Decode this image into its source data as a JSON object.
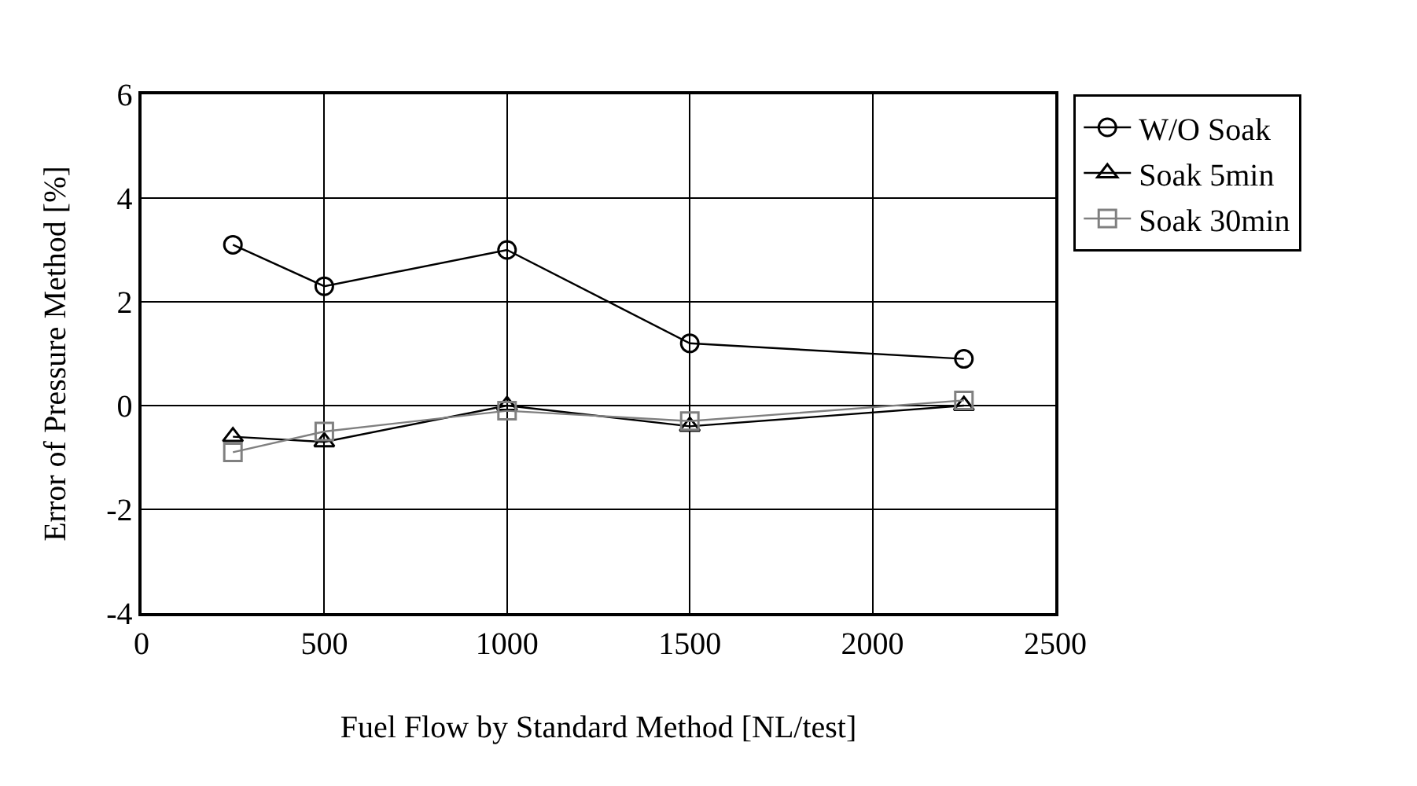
{
  "chart_data": {
    "type": "line",
    "xlabel": "Fuel Flow by Standard Method [NL/test]",
    "ylabel": "Error of Pressure Method [%]",
    "xlim": [
      0,
      2500
    ],
    "xticks": [
      0,
      500,
      1000,
      1500,
      2000,
      2500
    ],
    "ylim": [
      -4,
      6
    ],
    "yticks": [
      -4,
      -2,
      0,
      2,
      4,
      6
    ],
    "grid": true,
    "legend": "right",
    "x": [
      250,
      500,
      1000,
      1500,
      2250
    ],
    "series": [
      {
        "name": "W/O Soak",
        "color": "#000000",
        "marker": "circle",
        "values": [
          3.1,
          2.3,
          3.0,
          1.2,
          0.9
        ]
      },
      {
        "name": "Soak 5min",
        "color": "#000000",
        "marker": "triangle",
        "values": [
          -0.6,
          -0.7,
          0.0,
          -0.4,
          0.0
        ]
      },
      {
        "name": "Soak 30min",
        "color": "#808080",
        "marker": "square",
        "values": [
          -0.9,
          -0.5,
          -0.1,
          -0.3,
          0.1
        ]
      }
    ]
  }
}
